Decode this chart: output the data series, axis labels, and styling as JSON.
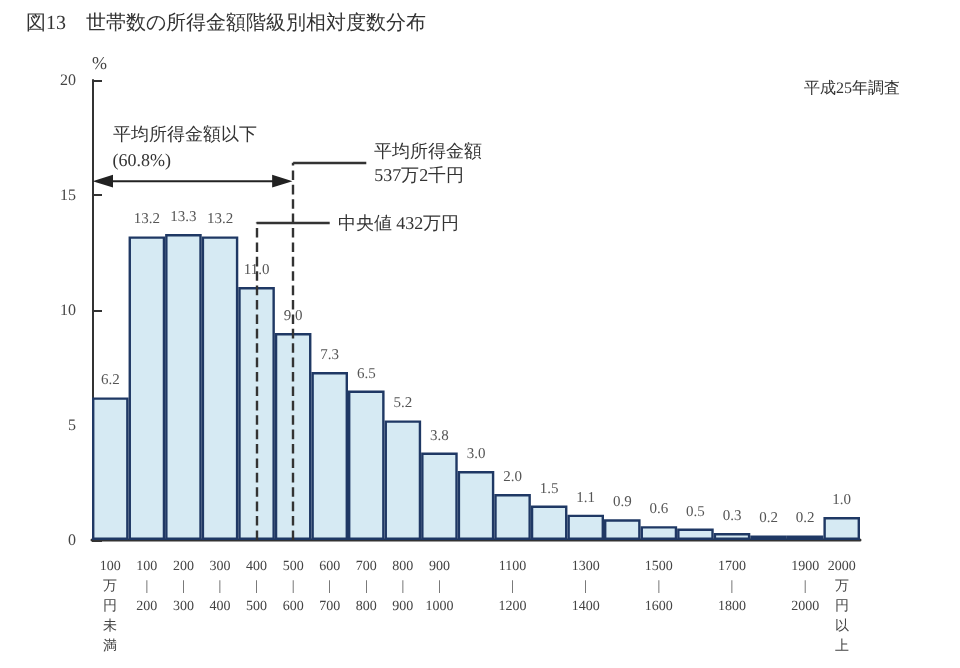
{
  "chart_data": {
    "type": "bar",
    "title": "図13　世帯数の所得金額階級別相対度数分布",
    "ylabel": "%",
    "categories": [
      "100万円未満",
      "100\n|\n200",
      "200\n|\n300",
      "300\n|\n400",
      "400\n|\n500",
      "500\n|\n600",
      "600\n|\n700",
      "700\n|\n800",
      "800\n|\n900",
      "900\n|\n1000",
      null,
      "1100\n|\n1200",
      null,
      "1300\n|\n1400",
      null,
      "1500\n|\n1600",
      null,
      "1700\n|\n1800",
      null,
      "1900\n|\n2000",
      "2000万円以上"
    ],
    "values": [
      6.2,
      13.2,
      13.3,
      13.2,
      11.0,
      9.0,
      7.3,
      6.5,
      5.2,
      3.8,
      3.0,
      2.0,
      1.5,
      1.1,
      0.9,
      0.6,
      0.5,
      0.3,
      0.2,
      0.2,
      1.0
    ],
    "value_labels": [
      "6.2",
      "13.2",
      "13.3",
      "13.2",
      "11.0",
      "9.0",
      "7.3",
      "6.5",
      "5.2",
      "3.8",
      "3.0",
      "2.0",
      "1.5",
      "1.1",
      "0.9",
      "0.6",
      "0.5",
      "0.3",
      "0.2",
      "0.2",
      "1.0"
    ],
    "color": "#d6eaf3",
    "ylim": [
      0,
      20
    ],
    "yticks": [
      0,
      5,
      10,
      15,
      20
    ],
    "ref_lines": [
      {
        "axis": "x",
        "value": "500\n|\n600",
        "label": "平均所得金額\n537万2千円",
        "line_style": "dashed",
        "color": "#333333"
      },
      {
        "axis": "x",
        "value": "400\n|\n500",
        "label": "中央値 432万円",
        "line_style": "dashed",
        "color": "#333333"
      }
    ],
    "annotations": [
      "平均所得金額以下\n(60.8%)",
      "平成25年調査"
    ]
  }
}
